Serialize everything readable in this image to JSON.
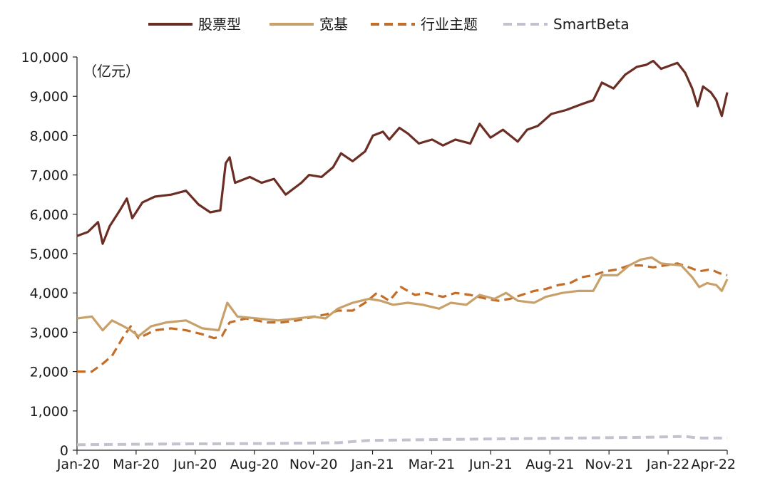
{
  "chart_data": {
    "type": "line",
    "unit_label": "（亿元）",
    "x_ticks": [
      "Jan-20",
      "Mar-20",
      "Jun-20",
      "Aug-20",
      "Nov-20",
      "Jan-21",
      "Mar-21",
      "Jun-21",
      "Aug-21",
      "Nov-21",
      "Jan-22",
      "Apr-22"
    ],
    "x_range": [
      "2020-01-01",
      "2022-04-15"
    ],
    "ylim": [
      0,
      10000
    ],
    "y_ticks": [
      "0",
      "1,000",
      "2,000",
      "3,000",
      "4,000",
      "5,000",
      "6,000",
      "7,000",
      "8,000",
      "9,000",
      "10,000"
    ],
    "grid": false,
    "legend_position": "top",
    "series": [
      {
        "name": "股票型",
        "color": "#6b2e24",
        "dash": "solid",
        "points": [
          [
            "2020-01-01",
            5450
          ],
          [
            "2020-01-15",
            5550
          ],
          [
            "2020-01-28",
            5800
          ],
          [
            "2020-02-03",
            5250
          ],
          [
            "2020-02-12",
            5700
          ],
          [
            "2020-02-25",
            6100
          ],
          [
            "2020-03-05",
            6400
          ],
          [
            "2020-03-12",
            5900
          ],
          [
            "2020-03-25",
            6300
          ],
          [
            "2020-04-10",
            6450
          ],
          [
            "2020-05-01",
            6500
          ],
          [
            "2020-05-20",
            6600
          ],
          [
            "2020-06-05",
            6250
          ],
          [
            "2020-06-20",
            6050
          ],
          [
            "2020-07-03",
            6100
          ],
          [
            "2020-07-10",
            7300
          ],
          [
            "2020-07-15",
            7450
          ],
          [
            "2020-07-22",
            6800
          ],
          [
            "2020-08-10",
            6950
          ],
          [
            "2020-08-25",
            6800
          ],
          [
            "2020-09-10",
            6900
          ],
          [
            "2020-09-25",
            6500
          ],
          [
            "2020-10-15",
            6800
          ],
          [
            "2020-10-25",
            7000
          ],
          [
            "2020-11-10",
            6950
          ],
          [
            "2020-11-25",
            7200
          ],
          [
            "2020-12-05",
            7550
          ],
          [
            "2020-12-20",
            7350
          ],
          [
            "2021-01-05",
            7600
          ],
          [
            "2021-01-15",
            8000
          ],
          [
            "2021-01-28",
            8100
          ],
          [
            "2021-02-05",
            7900
          ],
          [
            "2021-02-18",
            8200
          ],
          [
            "2021-03-01",
            8050
          ],
          [
            "2021-03-15",
            7800
          ],
          [
            "2021-04-01",
            7900
          ],
          [
            "2021-04-15",
            7750
          ],
          [
            "2021-05-01",
            7900
          ],
          [
            "2021-05-20",
            7800
          ],
          [
            "2021-06-01",
            8300
          ],
          [
            "2021-06-15",
            7950
          ],
          [
            "2021-07-01",
            8150
          ],
          [
            "2021-07-20",
            7850
          ],
          [
            "2021-08-01",
            8150
          ],
          [
            "2021-08-15",
            8250
          ],
          [
            "2021-09-01",
            8550
          ],
          [
            "2021-09-20",
            8650
          ],
          [
            "2021-10-10",
            8800
          ],
          [
            "2021-10-25",
            8900
          ],
          [
            "2021-11-05",
            9350
          ],
          [
            "2021-11-20",
            9200
          ],
          [
            "2021-12-05",
            9550
          ],
          [
            "2021-12-20",
            9750
          ],
          [
            "2022-01-01",
            9800
          ],
          [
            "2022-01-10",
            9900
          ],
          [
            "2022-01-20",
            9700
          ],
          [
            "2022-02-10",
            9850
          ],
          [
            "2022-02-20",
            9600
          ],
          [
            "2022-03-01",
            9200
          ],
          [
            "2022-03-08",
            8750
          ],
          [
            "2022-03-15",
            9250
          ],
          [
            "2022-03-25",
            9100
          ],
          [
            "2022-04-01",
            8900
          ],
          [
            "2022-04-08",
            8500
          ],
          [
            "2022-04-15",
            9100
          ]
        ]
      },
      {
        "name": "宽基",
        "color": "#c8a069",
        "dash": "solid",
        "points": [
          [
            "2020-01-01",
            3350
          ],
          [
            "2020-01-20",
            3400
          ],
          [
            "2020-02-03",
            3050
          ],
          [
            "2020-02-15",
            3300
          ],
          [
            "2020-03-01",
            3150
          ],
          [
            "2020-03-10",
            3050
          ],
          [
            "2020-03-20",
            2900
          ],
          [
            "2020-04-05",
            3150
          ],
          [
            "2020-04-25",
            3250
          ],
          [
            "2020-05-20",
            3300
          ],
          [
            "2020-06-10",
            3100
          ],
          [
            "2020-07-01",
            3050
          ],
          [
            "2020-07-12",
            3750
          ],
          [
            "2020-07-25",
            3400
          ],
          [
            "2020-08-20",
            3350
          ],
          [
            "2020-09-15",
            3300
          ],
          [
            "2020-10-10",
            3350
          ],
          [
            "2020-10-30",
            3400
          ],
          [
            "2020-11-15",
            3350
          ],
          [
            "2020-12-01",
            3600
          ],
          [
            "2020-12-20",
            3750
          ],
          [
            "2021-01-10",
            3850
          ],
          [
            "2021-01-25",
            3800
          ],
          [
            "2021-02-10",
            3700
          ],
          [
            "2021-03-01",
            3750
          ],
          [
            "2021-03-20",
            3700
          ],
          [
            "2021-04-10",
            3600
          ],
          [
            "2021-04-25",
            3750
          ],
          [
            "2021-05-15",
            3700
          ],
          [
            "2021-06-01",
            3950
          ],
          [
            "2021-06-20",
            3850
          ],
          [
            "2021-07-05",
            4000
          ],
          [
            "2021-07-20",
            3800
          ],
          [
            "2021-08-10",
            3750
          ],
          [
            "2021-08-25",
            3900
          ],
          [
            "2021-09-15",
            4000
          ],
          [
            "2021-10-05",
            4050
          ],
          [
            "2021-10-25",
            4050
          ],
          [
            "2021-11-05",
            4450
          ],
          [
            "2021-11-25",
            4450
          ],
          [
            "2021-12-10",
            4700
          ],
          [
            "2021-12-25",
            4850
          ],
          [
            "2022-01-08",
            4900
          ],
          [
            "2022-01-20",
            4750
          ],
          [
            "2022-02-15",
            4700
          ],
          [
            "2022-03-01",
            4400
          ],
          [
            "2022-03-10",
            4150
          ],
          [
            "2022-03-20",
            4250
          ],
          [
            "2022-04-01",
            4200
          ],
          [
            "2022-04-08",
            4050
          ],
          [
            "2022-04-15",
            4350
          ]
        ]
      },
      {
        "name": "行业主题",
        "color": "#c36d28",
        "dash": "dash",
        "points": [
          [
            "2020-01-01",
            2000
          ],
          [
            "2020-01-20",
            2000
          ],
          [
            "2020-02-03",
            2200
          ],
          [
            "2020-02-15",
            2400
          ],
          [
            "2020-03-01",
            2900
          ],
          [
            "2020-03-10",
            3150
          ],
          [
            "2020-03-20",
            2850
          ],
          [
            "2020-04-10",
            3050
          ],
          [
            "2020-05-01",
            3100
          ],
          [
            "2020-05-20",
            3050
          ],
          [
            "2020-06-10",
            2950
          ],
          [
            "2020-06-25",
            2850
          ],
          [
            "2020-07-05",
            2900
          ],
          [
            "2020-07-15",
            3250
          ],
          [
            "2020-08-05",
            3350
          ],
          [
            "2020-09-01",
            3250
          ],
          [
            "2020-09-20",
            3250
          ],
          [
            "2020-10-10",
            3300
          ],
          [
            "2020-11-01",
            3400
          ],
          [
            "2020-11-15",
            3450
          ],
          [
            "2020-12-01",
            3550
          ],
          [
            "2020-12-20",
            3550
          ],
          [
            "2021-01-05",
            3750
          ],
          [
            "2021-01-20",
            4000
          ],
          [
            "2021-02-05",
            3800
          ],
          [
            "2021-02-20",
            4150
          ],
          [
            "2021-03-10",
            3950
          ],
          [
            "2021-03-25",
            4000
          ],
          [
            "2021-04-15",
            3900
          ],
          [
            "2021-05-01",
            4000
          ],
          [
            "2021-05-20",
            3950
          ],
          [
            "2021-06-10",
            3850
          ],
          [
            "2021-06-25",
            3800
          ],
          [
            "2021-07-10",
            3850
          ],
          [
            "2021-07-25",
            3950
          ],
          [
            "2021-08-10",
            4050
          ],
          [
            "2021-08-25",
            4100
          ],
          [
            "2021-09-10",
            4200
          ],
          [
            "2021-09-25",
            4250
          ],
          [
            "2021-10-10",
            4400
          ],
          [
            "2021-10-25",
            4450
          ],
          [
            "2021-11-10",
            4550
          ],
          [
            "2021-11-25",
            4600
          ],
          [
            "2021-12-10",
            4700
          ],
          [
            "2021-12-25",
            4700
          ],
          [
            "2022-01-10",
            4650
          ],
          [
            "2022-01-25",
            4700
          ],
          [
            "2022-02-10",
            4750
          ],
          [
            "2022-02-25",
            4650
          ],
          [
            "2022-03-10",
            4550
          ],
          [
            "2022-03-25",
            4600
          ],
          [
            "2022-04-05",
            4500
          ],
          [
            "2022-04-15",
            4450
          ]
        ]
      },
      {
        "name": "SmartBeta",
        "color": "#c4c2cf",
        "dash": "dash",
        "points": [
          [
            "2020-01-01",
            140
          ],
          [
            "2020-05-01",
            160
          ],
          [
            "2020-09-01",
            170
          ],
          [
            "2020-12-01",
            190
          ],
          [
            "2021-01-10",
            250
          ],
          [
            "2021-04-01",
            270
          ],
          [
            "2021-07-01",
            290
          ],
          [
            "2021-10-01",
            310
          ],
          [
            "2022-01-01",
            330
          ],
          [
            "2022-02-20",
            350
          ],
          [
            "2022-03-10",
            310
          ],
          [
            "2022-04-15",
            310
          ]
        ]
      }
    ]
  }
}
